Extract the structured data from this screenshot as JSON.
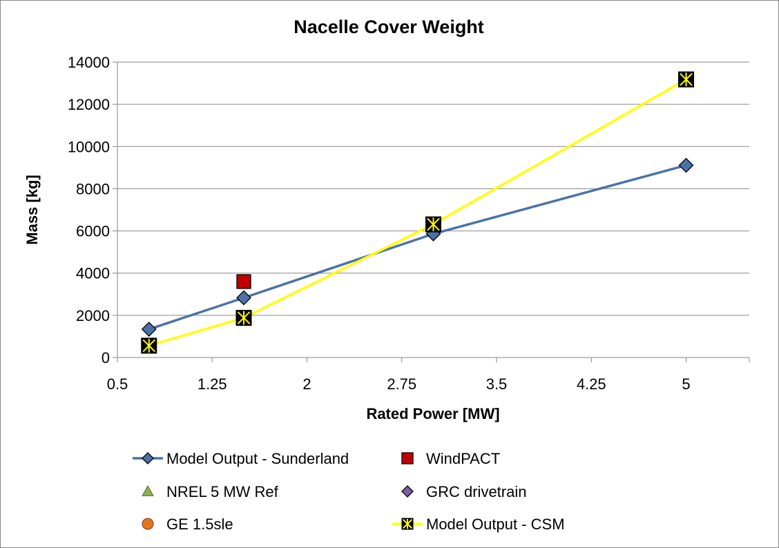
{
  "chart_data": {
    "type": "scatter",
    "title": "Nacelle Cover Weight",
    "xlabel": "Rated Power [MW]",
    "ylabel": "Mass [kg]",
    "xlim": [
      0.5,
      5.5
    ],
    "ylim": [
      0,
      14000
    ],
    "xticks": [
      0.5,
      1.25,
      2,
      2.75,
      3.5,
      4.25,
      5
    ],
    "xtick_labels": [
      "0.5",
      "1.25",
      "2",
      "2.75",
      "3.5",
      "4.25",
      "5"
    ],
    "yticks": [
      0,
      2000,
      4000,
      6000,
      8000,
      10000,
      12000,
      14000
    ],
    "ytick_labels": [
      "0",
      "2000",
      "4000",
      "6000",
      "8000",
      "10000",
      "12000",
      "14000"
    ],
    "grid": "horizontal",
    "legend_position": "bottom",
    "series": [
      {
        "name": "Model Output - Sunderland",
        "mode": "line+markers",
        "marker": "diamond",
        "color": "#4a72a8",
        "x": [
          0.75,
          1.5,
          3.0,
          5.0
        ],
        "y": [
          1340,
          2830,
          5860,
          9110
        ]
      },
      {
        "name": "WindPACT",
        "mode": "markers",
        "marker": "square",
        "color": "#c00000",
        "x": [
          1.5
        ],
        "y": [
          3600
        ]
      },
      {
        "name": "NREL 5 MW Ref",
        "mode": "markers",
        "marker": "triangle",
        "color": "#8cb050",
        "x": [],
        "y": []
      },
      {
        "name": "GRC drivetrain",
        "mode": "markers",
        "marker": "diamond",
        "color": "#7e5fa3",
        "x": [],
        "y": []
      },
      {
        "name": "GE 1.5sle",
        "mode": "markers",
        "marker": "circle",
        "color": "#e8731f",
        "x": [],
        "y": []
      },
      {
        "name": "Model Output - CSM",
        "mode": "line+markers",
        "marker": "star-square",
        "color": "#ffff00",
        "x": [
          0.75,
          1.5,
          3.0,
          5.0
        ],
        "y": [
          560,
          1880,
          6310,
          13180
        ]
      }
    ]
  }
}
